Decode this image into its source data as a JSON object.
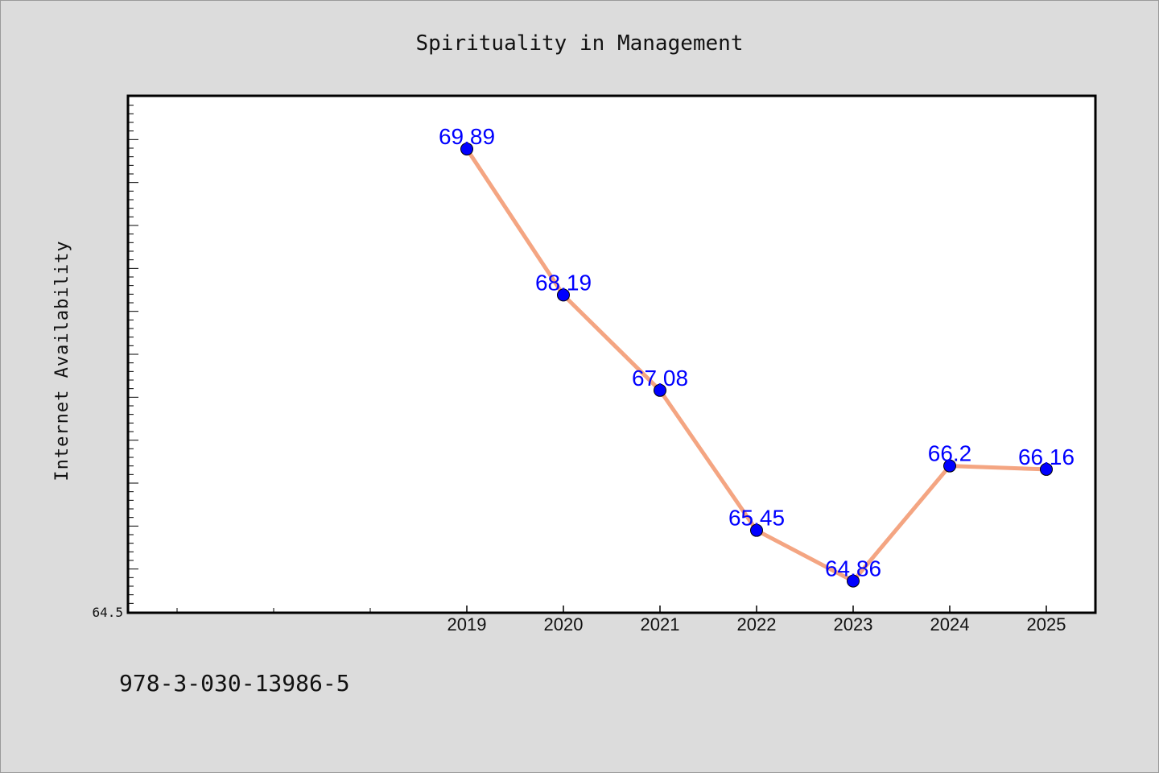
{
  "chart_data": {
    "type": "line",
    "title": "Spirituality in Management",
    "ylabel": "Internet Availability",
    "xlabel": "",
    "categories": [
      "2019",
      "2020",
      "2021",
      "2022",
      "2023",
      "2024",
      "2025"
    ],
    "series": [
      {
        "values": [
          69.89,
          68.19,
          67.08,
          65.45,
          64.86,
          66.2,
          66.16
        ]
      }
    ],
    "data_labels": [
      "69.89",
      "68.19",
      "67.08",
      "65.45",
      "64.86",
      "66.2",
      "66.16"
    ],
    "ytick_labels": [
      "64.5"
    ],
    "ylim": [
      64.5,
      70.5
    ],
    "grid": false,
    "colors": {
      "line": "#f4a582",
      "marker": "#0000ff",
      "label": "#0000ff",
      "plot_bg": "#ffffff",
      "page_bg": "#dcdcdc"
    }
  },
  "footer_text": "978-3-030-13986-5"
}
